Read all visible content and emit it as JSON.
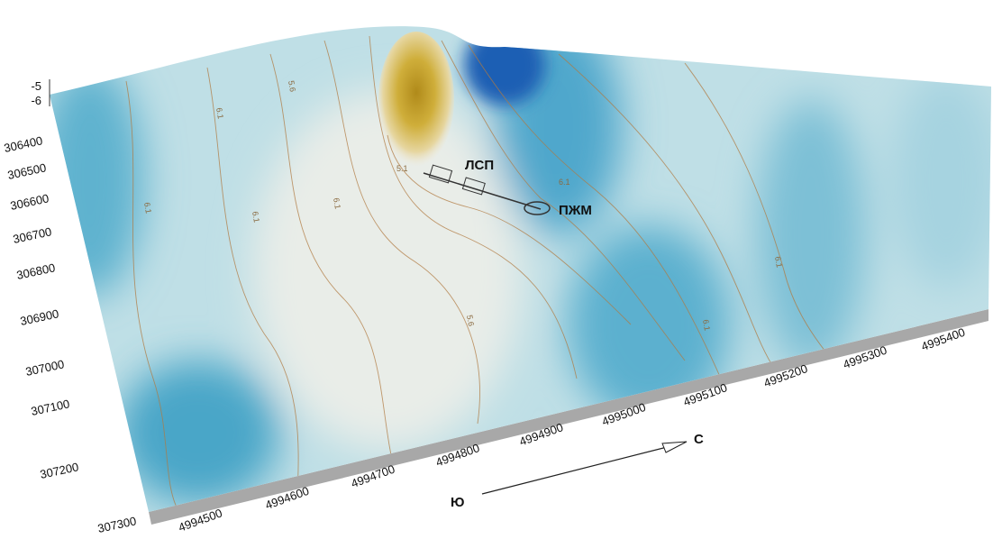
{
  "map": {
    "z_axis_labels": [
      "-5",
      "-6"
    ],
    "y_axis_labels": [
      "306400",
      "306500",
      "306600",
      "306700",
      "306800",
      "306900",
      "307000",
      "307100",
      "307200",
      "307300"
    ],
    "x_axis_labels": [
      "4994500",
      "4994600",
      "4994700",
      "4994800",
      "4994900",
      "4995000",
      "4995100",
      "4995200",
      "4995300",
      "4995400"
    ],
    "contour_labels": [
      "6.1",
      "5.6",
      "6.1",
      "5.1",
      "6.1",
      "6.1",
      "5.6",
      "6.1",
      "6.1",
      "6.1"
    ],
    "markers": [
      "ЛСП",
      "ПЖМ"
    ],
    "direction": {
      "from": "Ю",
      "to": "С"
    }
  }
}
